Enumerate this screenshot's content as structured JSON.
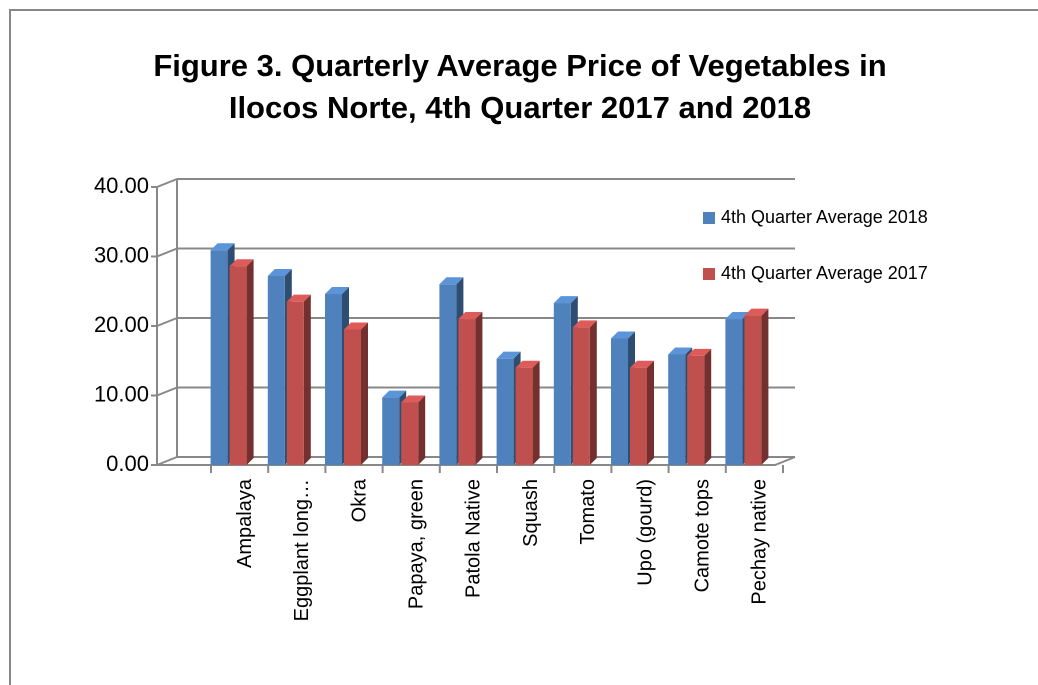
{
  "chart_data": {
    "type": "bar",
    "title": [
      "Figure 3.  Quarterly Average Price of Vegetables in",
      "Ilocos Norte, 4th Quarter 2017 and 2018"
    ],
    "categories": [
      "Ampalaya",
      "Eggplant long…",
      "Okra",
      "Papaya, green",
      "Patola Native",
      "Squash",
      "Tomato",
      "Upo (gourd)",
      "Camote tops",
      "Pechay native"
    ],
    "series": [
      {
        "name": "4th Quarter Average 2018",
        "color": "#4f81bd",
        "values": [
          30.9,
          27.2,
          24.6,
          9.7,
          26.0,
          15.3,
          23.3,
          18.2,
          15.9,
          21.0
        ]
      },
      {
        "name": "4th Quarter Average 2017",
        "color": "#c0504d",
        "values": [
          28.6,
          23.5,
          19.5,
          9.0,
          21.0,
          14.0,
          19.8,
          14.0,
          15.7,
          21.5
        ]
      }
    ],
    "ylim": [
      0,
      40
    ],
    "yticks": [
      {
        "value": 0,
        "label": "0.00"
      },
      {
        "value": 10,
        "label": "10.00"
      },
      {
        "value": 20,
        "label": "20.00"
      },
      {
        "value": 30,
        "label": "30.00"
      },
      {
        "value": 40,
        "label": "40.00"
      }
    ],
    "grid": true,
    "legend": "right"
  }
}
